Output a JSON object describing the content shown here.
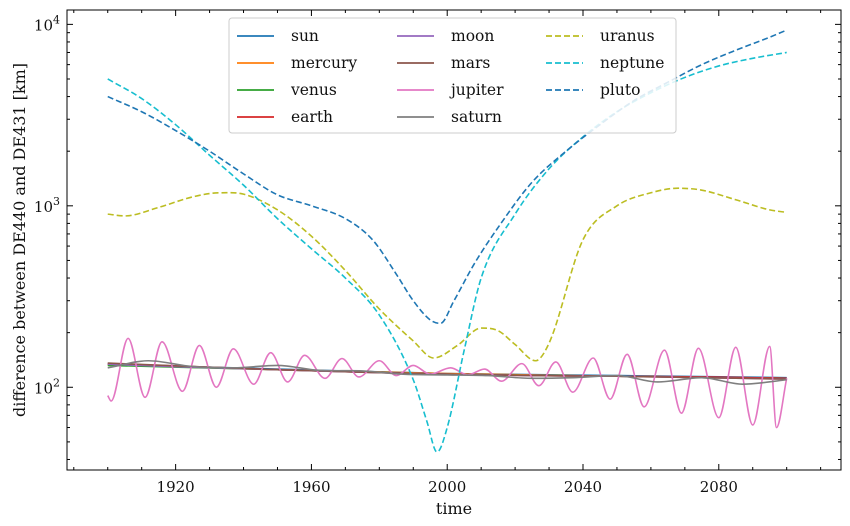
{
  "chart_data": {
    "type": "line",
    "xlabel": "time",
    "ylabel": "difference between DE440 and DE431 [km]",
    "xlim": [
      1888,
      2116
    ],
    "ylim": [
      35,
      12000
    ],
    "yscale": "log",
    "xticks": [
      1920,
      1960,
      2000,
      2040,
      2080
    ],
    "xtick_labels": [
      "1920",
      "1960",
      "2000",
      "2040",
      "2080"
    ],
    "yticks": [
      100,
      1000,
      10000
    ],
    "ytick_labels": [
      {
        "base": "10",
        "exp": "2"
      },
      {
        "base": "10",
        "exp": "3"
      },
      {
        "base": "10",
        "exp": "4"
      }
    ],
    "grid": false,
    "legend": {
      "placement": "top-center",
      "columns": 3
    },
    "series": [
      {
        "name": "sun",
        "color": "#1f77b4",
        "dash": "solid",
        "x": [
          1900,
          1950,
          2000,
          2050,
          2100
        ],
        "y": [
          134,
          126,
          119,
          116,
          113
        ]
      },
      {
        "name": "mercury",
        "color": "#ff7f0e",
        "dash": "solid",
        "x": [
          1900,
          1950,
          2000,
          2050,
          2100
        ],
        "y": [
          133,
          125,
          119,
          115,
          112
        ]
      },
      {
        "name": "venus",
        "color": "#2ca02c",
        "dash": "solid",
        "x": [
          1900,
          1950,
          2000,
          2050,
          2100
        ],
        "y": [
          132,
          125,
          118,
          115,
          112
        ]
      },
      {
        "name": "earth",
        "color": "#d62728",
        "dash": "solid",
        "x": [
          1900,
          1925,
          1950,
          1975,
          2000,
          2025,
          2050,
          2075,
          2100
        ],
        "y": [
          135,
          130,
          125,
          121,
          118,
          116,
          115,
          114,
          112
        ]
      },
      {
        "name": "moon",
        "color": "#9467bd",
        "dash": "solid",
        "x": [
          1900,
          1925,
          1950,
          1975,
          2000,
          2025,
          2050,
          2075,
          2100
        ],
        "y": [
          134,
          129,
          125,
          121,
          118,
          116,
          115,
          113,
          111
        ]
      },
      {
        "name": "mars",
        "color": "#8c564b",
        "dash": "solid",
        "x": [
          1900,
          1925,
          1950,
          1975,
          2000,
          2025,
          2050,
          2075,
          2100
        ],
        "y": [
          136,
          130,
          125,
          121,
          118,
          116,
          115,
          113,
          111
        ]
      },
      {
        "name": "jupiter",
        "color": "#e377c2",
        "dash": "solid",
        "x": [
          1900,
          1901,
          1906,
          1911,
          1916,
          1922,
          1927,
          1932,
          1937,
          1943,
          1948,
          1953,
          1958,
          1964,
          1969,
          1974,
          1980,
          1985,
          1990,
          1995,
          2001,
          2006,
          2011,
          2016,
          2022,
          2027,
          2032,
          2037,
          2043,
          2048,
          2053,
          2058,
          2064,
          2069,
          2074,
          2080,
          2085,
          2090,
          2095,
          2097,
          2100
        ],
        "y": [
          90,
          84,
          186,
          88,
          178,
          95,
          170,
          100,
          163,
          104,
          155,
          107,
          150,
          112,
          144,
          114,
          140,
          116,
          132,
          118,
          128,
          117,
          126,
          108,
          135,
          102,
          138,
          94,
          145,
          86,
          152,
          78,
          160,
          72,
          164,
          68,
          166,
          62,
          168,
          60,
          112
        ]
      },
      {
        "name": "saturn",
        "color": "#7f7f7f",
        "dash": "solid",
        "x": [
          1900,
          1912,
          1925,
          1937,
          1950,
          1962,
          1975,
          1987,
          2000,
          2012,
          2025,
          2037,
          2050,
          2062,
          2075,
          2087,
          2100
        ],
        "y": [
          128,
          140,
          130,
          128,
          132,
          124,
          123,
          118,
          117,
          116,
          112,
          113,
          116,
          107,
          113,
          104,
          110
        ]
      },
      {
        "name": "uranus",
        "color": "#bcbd22",
        "dash": "dashed",
        "x": [
          1900,
          1905,
          1915,
          1925,
          1933,
          1940,
          1950,
          1960,
          1970,
          1980,
          1990,
          1996,
          2003,
          2010,
          2015,
          2020,
          2026,
          2030,
          2040,
          2050,
          2060,
          2068,
          2075,
          2085,
          2095,
          2100
        ],
        "y": [
          900,
          880,
          980,
          1120,
          1180,
          1160,
          950,
          680,
          440,
          270,
          180,
          145,
          170,
          212,
          205,
          172,
          140,
          175,
          650,
          1000,
          1180,
          1250,
          1220,
          1080,
          950,
          920
        ]
      },
      {
        "name": "neptune",
        "color": "#17becf",
        "dash": "dashed",
        "x": [
          1900,
          1910,
          1920,
          1930,
          1940,
          1950,
          1960,
          1970,
          1980,
          1990,
          1994,
          1997,
          2000,
          2005,
          2010,
          2020,
          2030,
          2040,
          2050,
          2060,
          2070,
          2080,
          2090,
          2100
        ],
        "y": [
          5000,
          3900,
          2800,
          1900,
          1300,
          850,
          580,
          400,
          250,
          110,
          65,
          44,
          60,
          160,
          400,
          900,
          1600,
          2400,
          3300,
          4200,
          5100,
          5900,
          6500,
          7000
        ]
      },
      {
        "name": "pluto",
        "color": "#1f77b4",
        "dash": "dashed",
        "x": [
          1900,
          1910,
          1920,
          1930,
          1940,
          1950,
          1960,
          1970,
          1978,
          1985,
          1990,
          1995,
          1998,
          2002,
          2008,
          2015,
          2025,
          2035,
          2045,
          2055,
          2065,
          2075,
          2085,
          2095,
          2100
        ],
        "y": [
          4000,
          3300,
          2600,
          2000,
          1500,
          1150,
          1000,
          850,
          650,
          420,
          300,
          235,
          225,
          300,
          480,
          760,
          1350,
          2000,
          2800,
          3800,
          4800,
          6000,
          7200,
          8500,
          9300
        ]
      }
    ]
  }
}
